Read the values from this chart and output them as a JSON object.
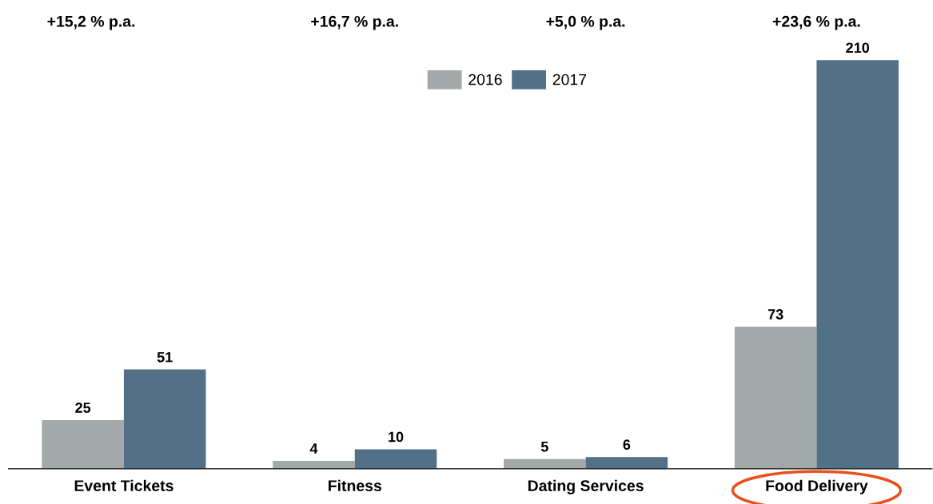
{
  "chart_data": {
    "type": "bar",
    "categories": [
      "Event Tickets",
      "Fitness",
      "Dating Services",
      "Food Delivery"
    ],
    "series": [
      {
        "name": "2016",
        "color": "#a3a8a8",
        "values": [
          25,
          4,
          5,
          73
        ]
      },
      {
        "name": "2017",
        "color": "#537089",
        "values": [
          51,
          10,
          6,
          210
        ]
      }
    ],
    "annotations": [
      "+15,2 % p.a.",
      "+16,7 % p.a.",
      "+5,0 % p.a.",
      "+23,6 % p.a."
    ],
    "data_labels": true,
    "tick_labels": "x",
    "legend": "top",
    "grid": false
  }
}
